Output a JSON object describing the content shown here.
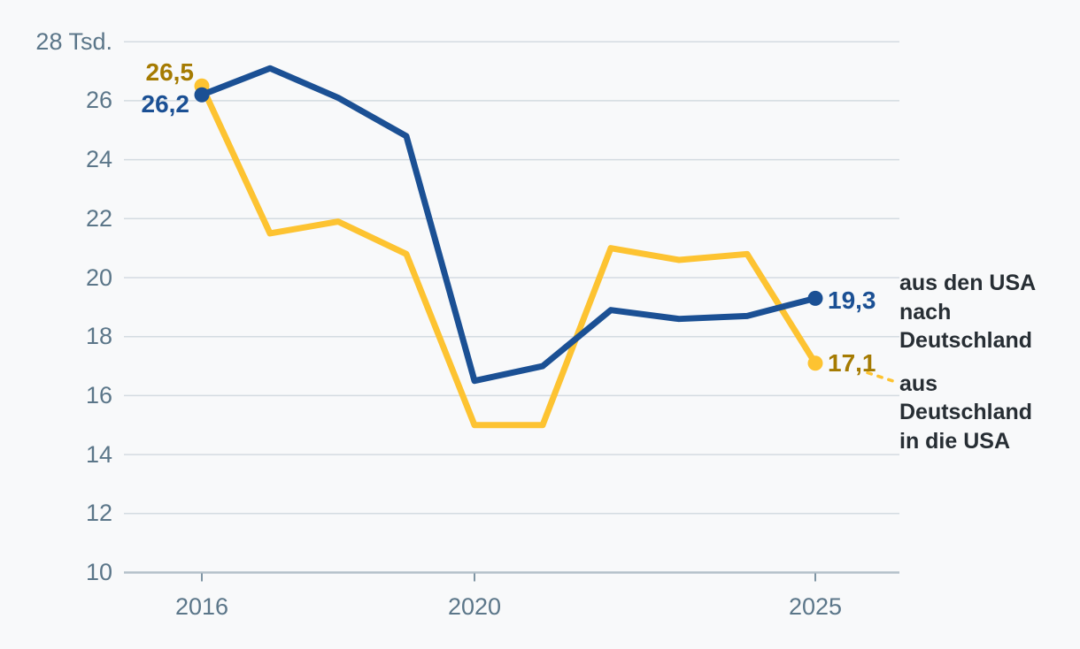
{
  "chart_data": {
    "type": "line",
    "unit_label": "Tsd.",
    "x": [
      2016,
      2017,
      2018,
      2019,
      2020,
      2021,
      2022,
      2023,
      2024,
      2025
    ],
    "series": [
      {
        "id": "germany-to-usa",
        "name": "aus Deutschland in die USA",
        "color": "#fdc331",
        "label_color": "#a57b02",
        "values": [
          26.5,
          21.5,
          21.9,
          20.8,
          15.0,
          15.0,
          21.0,
          20.6,
          20.8,
          17.1
        ],
        "start_label": "26,5",
        "end_label": "17,1"
      },
      {
        "id": "usa-to-germany",
        "name": "aus den USA nach Deutschland",
        "color": "#1b5094",
        "label_color": "#1b5094",
        "values": [
          26.2,
          27.1,
          26.1,
          24.8,
          16.5,
          17.0,
          18.9,
          18.6,
          18.7,
          19.3
        ],
        "start_label": "26,2",
        "end_label": "19,3"
      }
    ],
    "ylim": [
      10,
      28
    ],
    "yticks": [
      10,
      12,
      14,
      16,
      18,
      20,
      22,
      24,
      26,
      28
    ],
    "ytick_labels": [
      "10",
      "12",
      "14",
      "16",
      "18",
      "20",
      "22",
      "24",
      "26",
      "28 Tsd."
    ],
    "xticks": [
      2016,
      2020,
      2025
    ],
    "grid": true,
    "legend_position": "right"
  },
  "legend": {
    "usa_to_germany_lines": [
      "aus den USA",
      "nach",
      "Deutschland"
    ],
    "germany_to_usa_lines": [
      "aus",
      "Deutschland",
      "in die USA"
    ]
  },
  "colors": {
    "background": "#f8f9fa",
    "grid_line": "#d4dbe1",
    "axis_line": "#b4c0c9",
    "tick": "#7f95a4",
    "axis_text": "#5b7689",
    "legend_text": "#272e34",
    "blue": "#1b5094",
    "yellow": "#fdc331",
    "gold_label": "#a57b02"
  }
}
